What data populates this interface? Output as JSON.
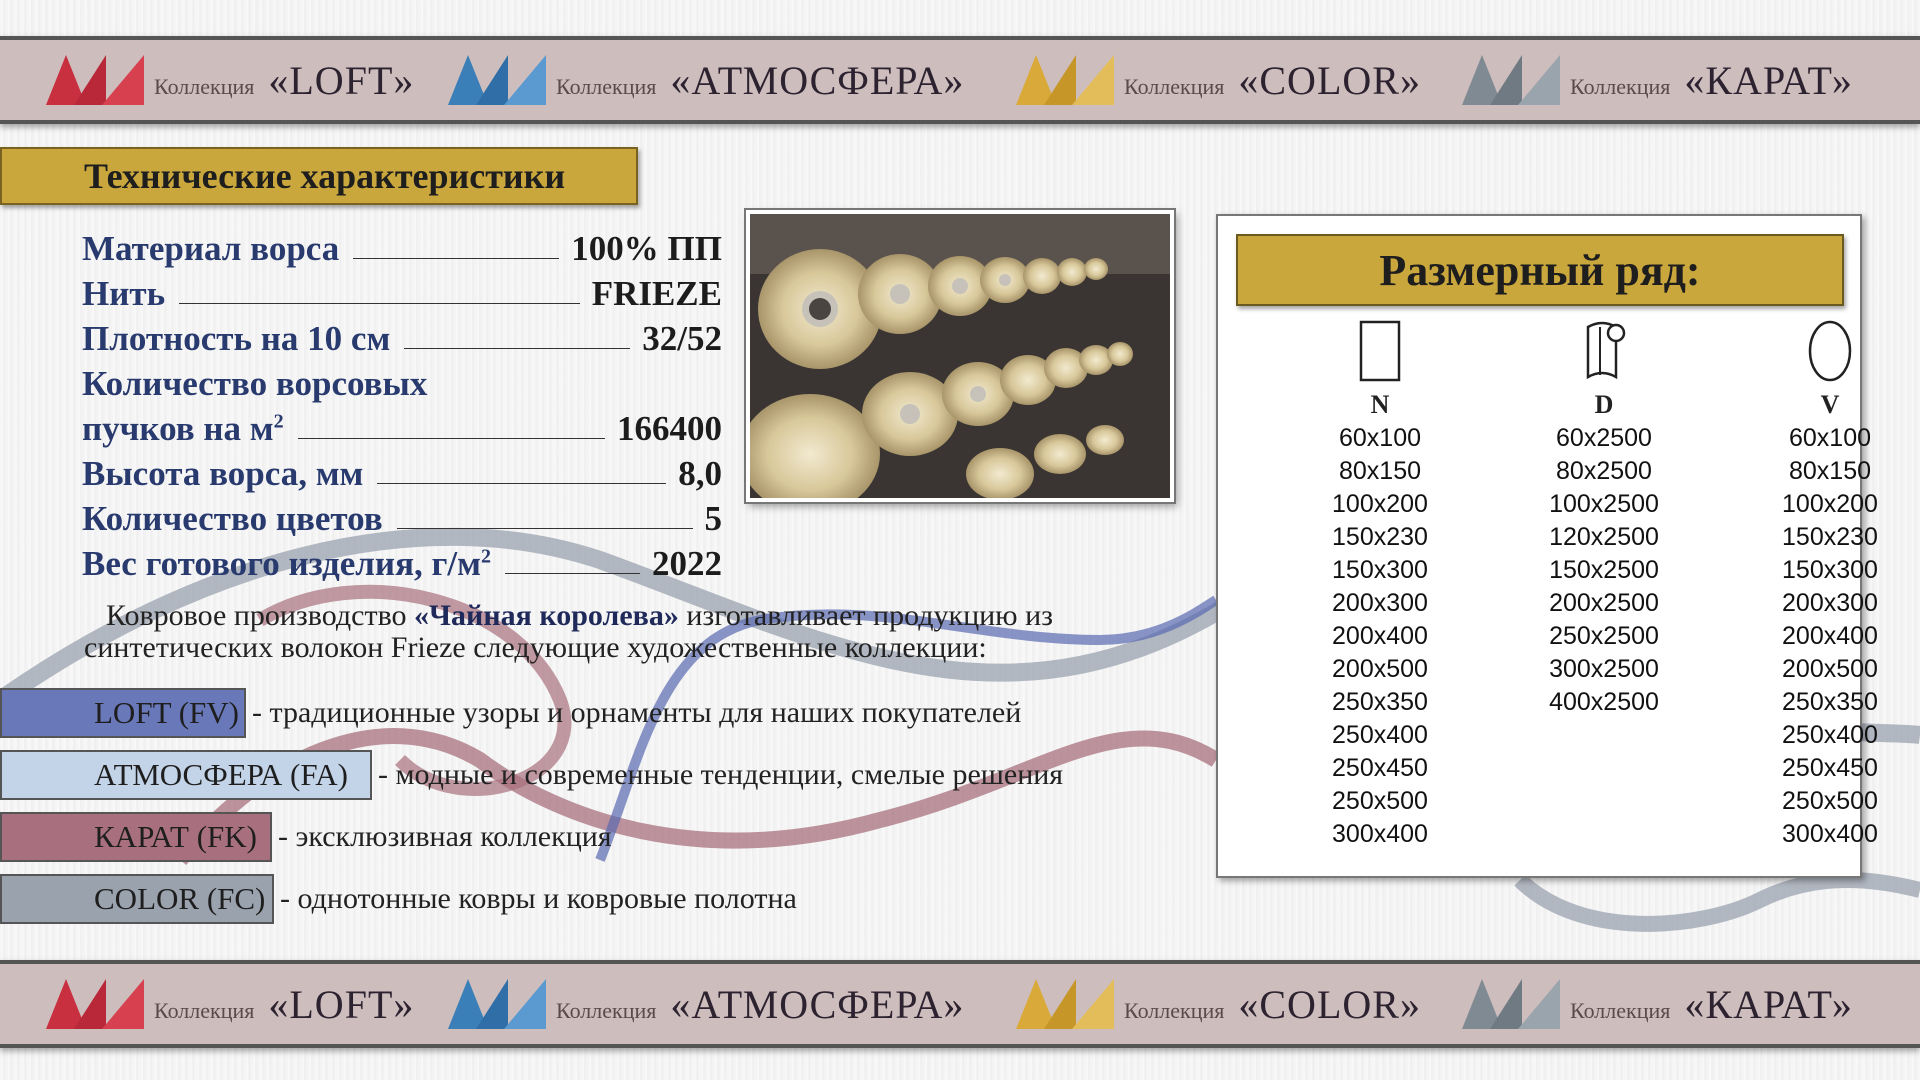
{
  "band": {
    "collection_word": "Коллекция",
    "items": [
      {
        "name": "«LOFT»",
        "color": "#c8303f"
      },
      {
        "name": "«АТМОСФЕРА»",
        "color": "#3a7fb8"
      },
      {
        "name": "«COLOR»",
        "color": "#d9a93a"
      },
      {
        "name": "«КАРАТ»",
        "color": "#7f8a92"
      }
    ]
  },
  "tech": {
    "title": "Технические характеристики",
    "rows": [
      {
        "label": "Материал ворса",
        "value": "100% ПП"
      },
      {
        "label": "Нить",
        "value": "FRIEZE"
      },
      {
        "label": "Плотность на 10 см",
        "value": "32/52"
      },
      {
        "label": "Количество ворсовых",
        "value": ""
      },
      {
        "label": "пучков на м",
        "sup": "2",
        "value": "166400"
      },
      {
        "label": "Высота ворса, мм",
        "value": "8,0"
      },
      {
        "label": "Количество цветов",
        "value": "5"
      },
      {
        "label": "Вес готового изделия, г/м",
        "sup": "2",
        "value": "2022"
      }
    ]
  },
  "intro": {
    "before": "Ковровое производство ",
    "brand": "«Чайная королева»",
    "after": " изготавливает продукцию из",
    "line2": "синтетических волокон Frieze следующие художественные коллекции:"
  },
  "collections": [
    {
      "tag": "LOFT (FV)",
      "desc": "- традиционные узоры и орнаменты для наших покупателей",
      "color": "#6978b8"
    },
    {
      "tag": "АТМОСФЕРА (FA)",
      "desc": "- модные и современные тенденции, смелые решения",
      "color": "#c3d3e8"
    },
    {
      "tag": "КАРАТ (FK)",
      "desc": "- эксклюзивная коллекция",
      "color": "#a8707e"
    },
    {
      "tag": "COLOR (FC)",
      "desc": "- однотонные ковры и ковровые полотна",
      "color": "#9aa2ae"
    }
  ],
  "sizes": {
    "title": "Размерный ряд:",
    "columns": [
      {
        "head": "N",
        "icon": "rectangle-icon",
        "items": [
          "60x100",
          "80x150",
          "100x200",
          "150x230",
          "150x300",
          "200x300",
          "200x400",
          "200x500",
          "250x350",
          "250x400",
          "250x450",
          "250x500",
          "300x400"
        ]
      },
      {
        "head": "D",
        "icon": "roll-icon",
        "items": [
          "60x2500",
          "80x2500",
          "100x2500",
          "120x2500",
          "150x2500",
          "200x2500",
          "250x2500",
          "300x2500",
          "400x2500"
        ]
      },
      {
        "head": "V",
        "icon": "oval-icon",
        "items": [
          "60x100",
          "80x150",
          "100x200",
          "150x230",
          "150x300",
          "200x300",
          "200x400",
          "200x500",
          "250x350",
          "250x400",
          "250x450",
          "250x500",
          "300x400"
        ]
      }
    ]
  }
}
